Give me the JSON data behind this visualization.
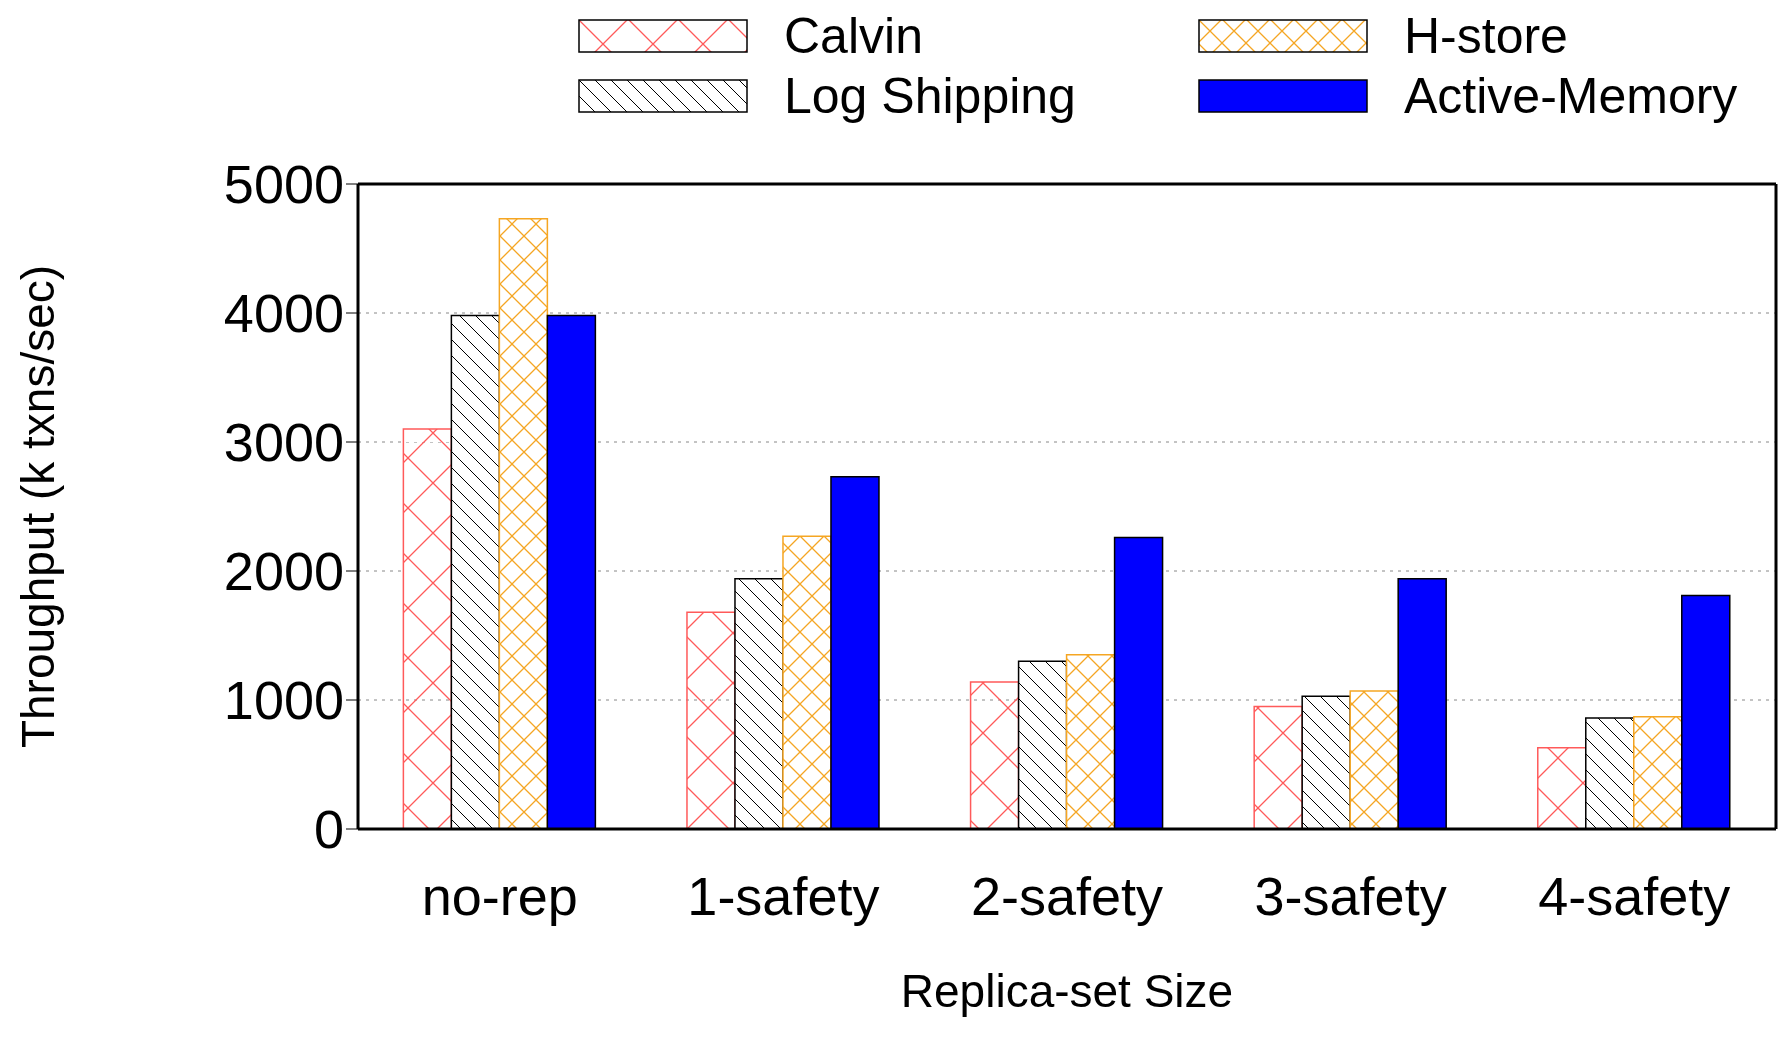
{
  "chart_data": {
    "type": "bar",
    "xlabel": "Replica-set Size",
    "ylabel": "Throughput (k txns/sec)",
    "categories": [
      "no-rep",
      "1-safety",
      "2-safety",
      "3-safety",
      "4-safety"
    ],
    "series": [
      {
        "name": "Calvin",
        "color": "#ff5a5a",
        "values": [
          3100,
          1680,
          1140,
          950,
          630
        ]
      },
      {
        "name": "Log Shipping",
        "color": "#000000",
        "values": [
          3980,
          1940,
          1300,
          1030,
          860
        ]
      },
      {
        "name": "H-store",
        "color": "#f5a623",
        "values": [
          4730,
          2270,
          1350,
          1070,
          870
        ]
      },
      {
        "name": "Active-Memory",
        "color": "#0000ff",
        "values": [
          3980,
          2730,
          2260,
          1940,
          1810
        ]
      }
    ],
    "ylim": [
      0,
      5000
    ],
    "yticks": [
      0,
      1000,
      2000,
      3000,
      4000,
      5000
    ],
    "grid": "y",
    "legend": "top"
  }
}
